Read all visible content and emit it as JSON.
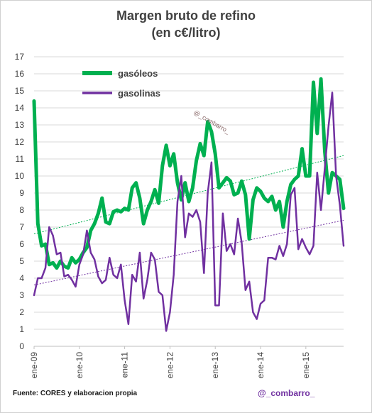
{
  "title": "Margen bruto de refino",
  "subtitle": "(en c€/litro)",
  "source": "Fuente: CORES y elaboracion propia",
  "handle": "@_combarro_",
  "watermark": "@_combarro_",
  "chart_data": {
    "type": "line",
    "title": "Margen bruto de refino (en c€/litro)",
    "ylim": [
      0,
      17
    ],
    "y_ticks": [
      0,
      1,
      2,
      3,
      4,
      5,
      6,
      7,
      8,
      9,
      10,
      11,
      12,
      13,
      14,
      15,
      16,
      17
    ],
    "x_tick_labels": [
      "ene-09",
      "ene-10",
      "ene-11",
      "ene-12",
      "ene-13",
      "ene-14",
      "ene-15"
    ],
    "x_tick_months": [
      0,
      12,
      24,
      36,
      48,
      60,
      72
    ],
    "months": 83,
    "legend": {
      "position": "top-left"
    },
    "series": [
      {
        "name": "gasóleos",
        "color": "#00b050",
        "trend": [
          6.6,
          11.2
        ],
        "values": [
          14.4,
          7.2,
          5.9,
          6.0,
          4.8,
          4.9,
          4.6,
          5.0,
          4.7,
          4.6,
          5.2,
          4.9,
          5.1,
          5.5,
          5.8,
          6.8,
          7.2,
          7.8,
          8.7,
          7.3,
          7.2,
          7.9,
          8.0,
          7.9,
          8.1,
          8.0,
          9.3,
          9.6,
          8.7,
          7.2,
          8.0,
          8.5,
          9.2,
          8.4,
          10.6,
          11.8,
          10.6,
          11.3,
          9.6,
          8.6,
          9.6,
          8.5,
          9.3,
          10.9,
          11.9,
          11.2,
          13.2,
          12.6,
          11.3,
          9.3,
          9.6,
          9.9,
          9.7,
          8.9,
          9.0,
          9.7,
          8.9,
          6.3,
          8.6,
          9.3,
          9.1,
          8.7,
          8.5,
          8.8,
          8.0,
          8.5,
          7.0,
          8.5,
          9.5,
          9.8,
          10.0,
          11.6,
          10.0,
          10.0,
          15.5,
          12.5,
          15.7,
          11.5,
          9.0,
          10.2,
          10.0,
          9.8,
          8.1
        ]
      },
      {
        "name": "gasolinas",
        "color": "#7030a0",
        "trend": [
          3.6,
          7.4
        ],
        "values": [
          3.0,
          4.0,
          4.0,
          4.6,
          7.0,
          6.5,
          5.4,
          5.5,
          4.1,
          4.2,
          3.9,
          3.5,
          4.8,
          5.4,
          6.8,
          5.5,
          5.1,
          4.1,
          3.7,
          3.9,
          5.2,
          4.2,
          4.0,
          4.8,
          2.7,
          1.3,
          4.2,
          3.8,
          5.5,
          2.8,
          3.9,
          5.5,
          5.1,
          3.2,
          3.0,
          0.9,
          2.0,
          4.2,
          8.5,
          10.0,
          6.4,
          7.8,
          7.6,
          8.0,
          7.3,
          4.3,
          9.0,
          10.8,
          2.4,
          2.4,
          7.8,
          5.6,
          6.0,
          5.4,
          7.5,
          6.1,
          3.3,
          3.8,
          2.0,
          1.6,
          2.5,
          2.7,
          5.2,
          5.2,
          5.1,
          5.9,
          5.3,
          6.0,
          8.9,
          9.3,
          5.7,
          6.3,
          5.8,
          5.4,
          5.9,
          10.2,
          8.0,
          10.4,
          12.9,
          14.9,
          10.0,
          8.3,
          5.9
        ]
      }
    ]
  }
}
